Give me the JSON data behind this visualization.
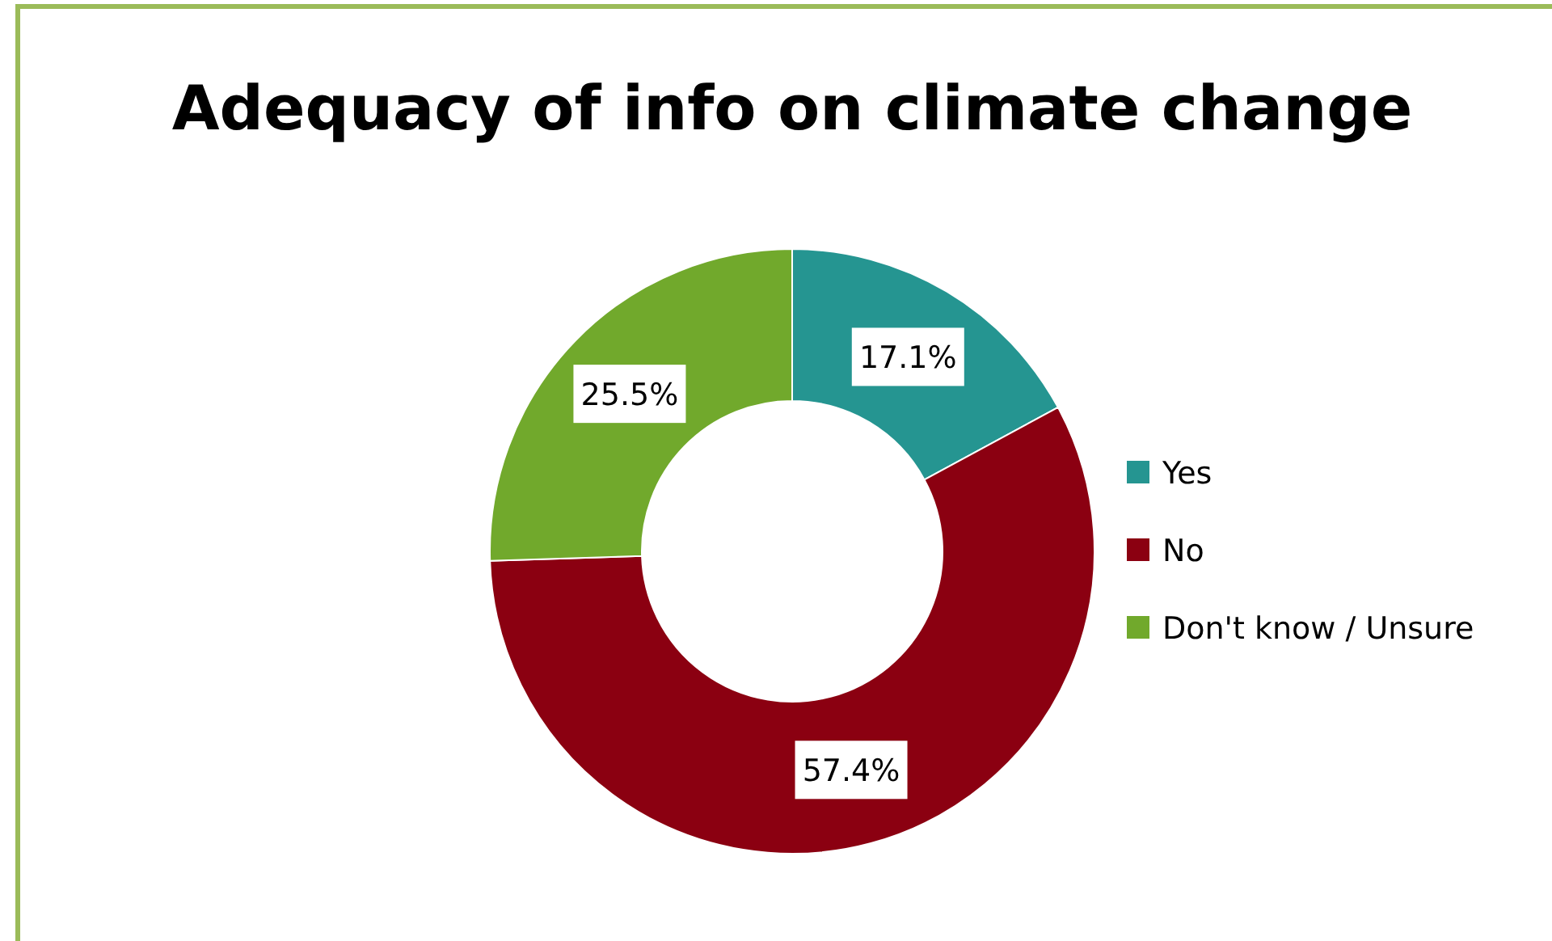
{
  "chart_data": {
    "type": "donut",
    "title": "Adequacy of info on climate change",
    "categories": [
      "Yes",
      "No",
      "Don't know / Unsure"
    ],
    "values": [
      17.1,
      57.4,
      25.5
    ],
    "colors": [
      "#259591",
      "#8b0011",
      "#71a92c"
    ],
    "value_labels": [
      "17.1%",
      "57.4%",
      "25.5%"
    ],
    "legend": "right"
  }
}
